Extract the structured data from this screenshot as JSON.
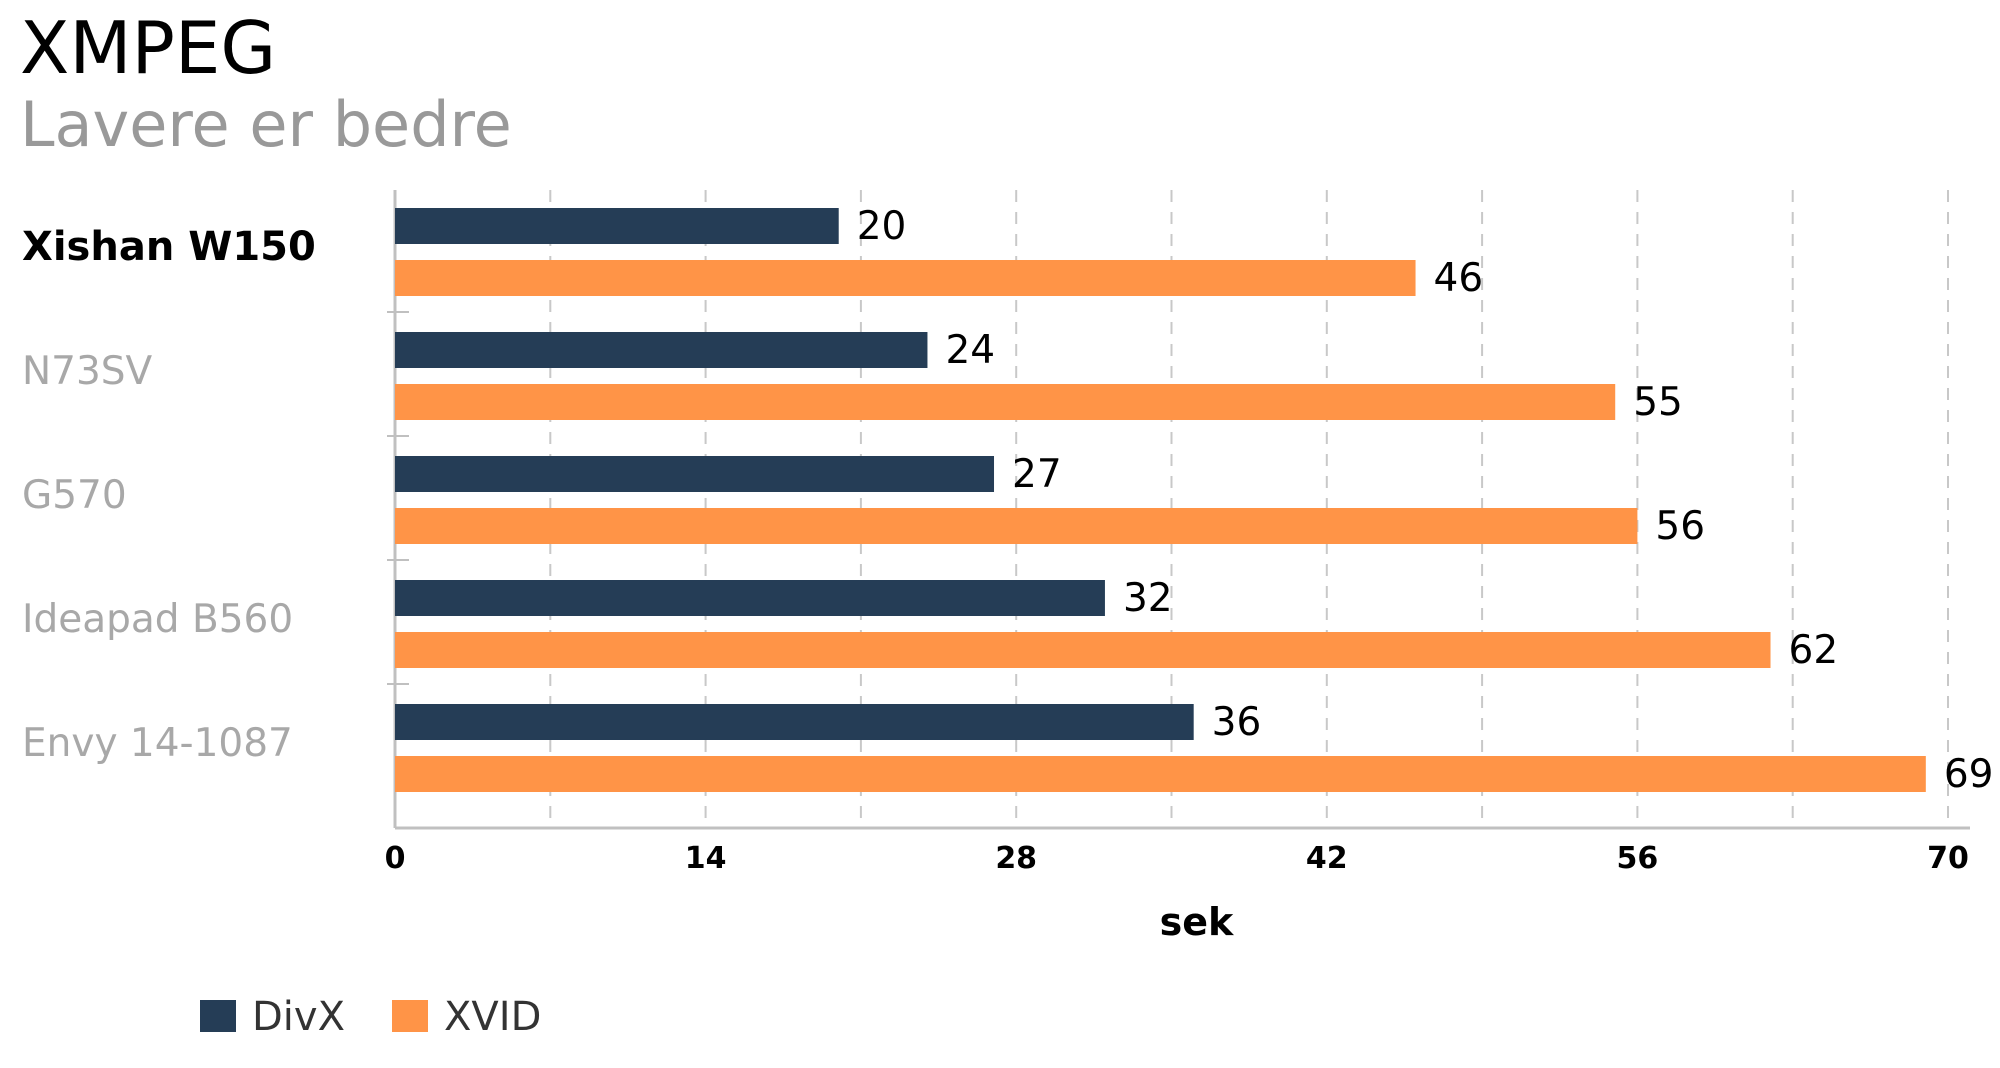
{
  "chart_data": {
    "type": "bar",
    "orientation": "horizontal",
    "title": "XMPEG",
    "subtitle": "Lavere er bedre",
    "xlabel": "sek",
    "ylabel": "",
    "categories": [
      "Xishan W150",
      "N73SV",
      "G570",
      "Ideapad B560",
      "Envy 14-1087"
    ],
    "highlighted_category": "Xishan W150",
    "series": [
      {
        "name": "DivX",
        "color": "#253d56",
        "values": [
          20,
          24,
          27,
          32,
          36
        ]
      },
      {
        "name": "XVID",
        "color": "#ff9447",
        "values": [
          46,
          55,
          56,
          62,
          69
        ]
      }
    ],
    "xlim": [
      0,
      70
    ],
    "xticks": [
      0,
      14,
      28,
      42,
      56,
      70
    ],
    "grid": true,
    "legend_position": "bottom-left",
    "data_labels": true
  }
}
